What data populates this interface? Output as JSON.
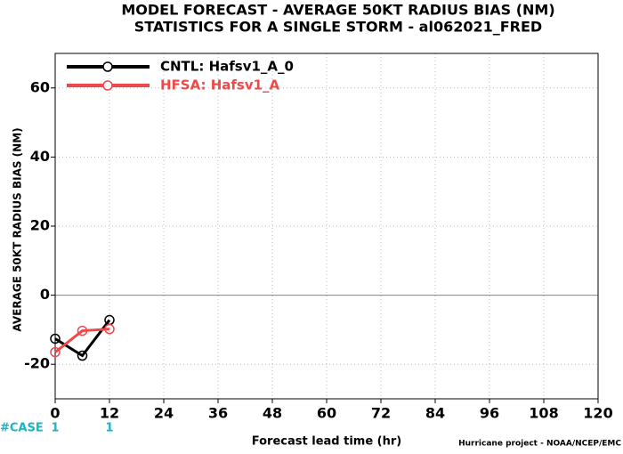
{
  "chart_data": {
    "type": "line",
    "title": "MODEL FORECAST - AVERAGE 50KT RADIUS BIAS (NM)",
    "subtitle": "STATISTICS FOR A SINGLE STORM - al062021_FRED",
    "x_label": "Forecast lead time (hr)",
    "y_label": "AVERAGE 50KT RADIUS BIAS (NM)",
    "credit": "Hurricane project - NOAA/NCEP/EMC",
    "x": [
      0,
      6,
      12
    ],
    "series": [
      {
        "name": "CNTL: Hafsv1_A_0",
        "color": "#000000",
        "values": [
          -12.6,
          -17.5,
          -7.2
        ]
      },
      {
        "name": "HFSA: Hafsv1_A",
        "color": "#f04848",
        "values": [
          -16.5,
          -10.3,
          -9.8
        ]
      }
    ],
    "xlim": [
      0,
      120
    ],
    "xticks": [
      0,
      12,
      24,
      36,
      48,
      60,
      72,
      84,
      96,
      108,
      120
    ],
    "ylim": [
      -30,
      70
    ],
    "yticks": [
      -20,
      0,
      20,
      40,
      60
    ],
    "grid": true,
    "legend": "upper left",
    "case_label": "#CASE",
    "case_x": [
      0,
      12
    ],
    "case_counts": [
      1,
      1
    ],
    "case_color": "#1ab4c8"
  }
}
